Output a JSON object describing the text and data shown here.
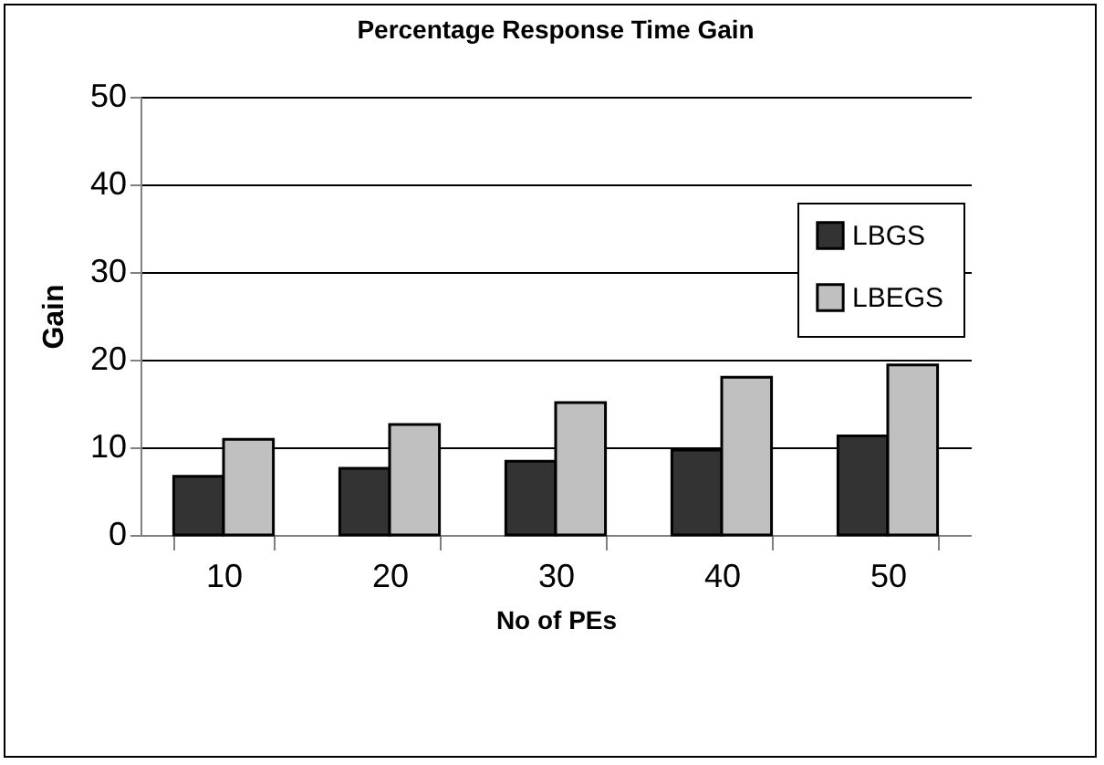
{
  "chart_data": {
    "type": "bar",
    "title": "Percentage Response Time Gain",
    "xlabel": "No of PEs",
    "ylabel": "Gain",
    "categories": [
      "10",
      "20",
      "30",
      "40",
      "50"
    ],
    "series": [
      {
        "name": "LBGS",
        "color": "#333333",
        "values": [
          6.7,
          7.6,
          8.4,
          9.7,
          11.3
        ]
      },
      {
        "name": "LBEGS",
        "color": "#c0c0c0",
        "values": [
          10.9,
          12.6,
          15.1,
          18.0,
          19.4
        ]
      }
    ],
    "ylim": [
      0,
      50
    ],
    "yticks": [
      0,
      10,
      20,
      30,
      40,
      50
    ],
    "grid": "y",
    "legend": "top right"
  }
}
